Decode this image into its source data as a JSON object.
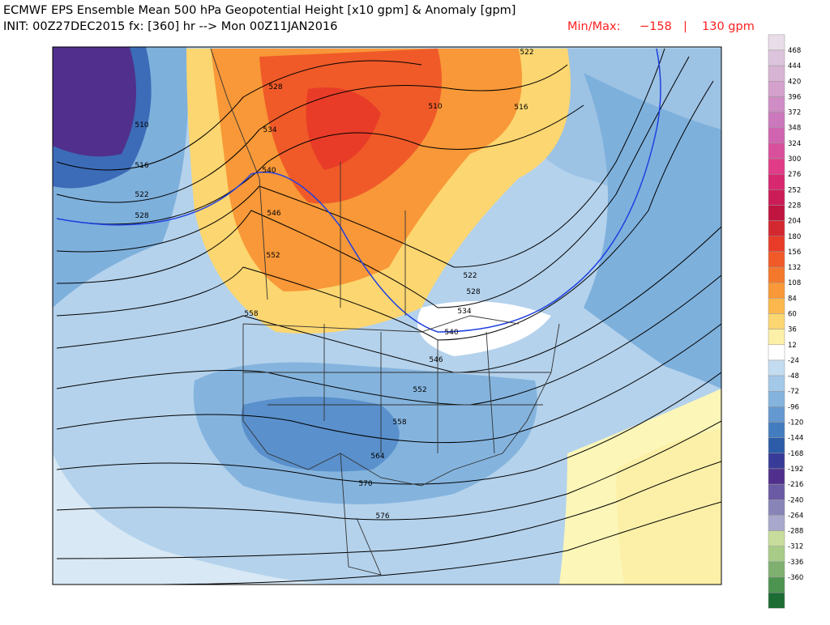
{
  "header": {
    "title": "ECMWF EPS Ensemble Mean 500 hPa Geopotential Height [x10 gpm] & Anomaly [gpm]",
    "init": "INIT: 00Z27DEC2015 fx: [360] hr --> Mon 00Z11JAN2016",
    "minmax_label": "Min/Max:",
    "min": "−158",
    "separator": "|",
    "max": "130 gpm"
  },
  "contour_labels": [
    "510",
    "516",
    "522",
    "528",
    "528",
    "534",
    "540",
    "546",
    "552",
    "558",
    "546",
    "552",
    "558",
    "564",
    "570",
    "576",
    "522",
    "528",
    "534",
    "540",
    "510",
    "516",
    "522"
  ],
  "colorbar": {
    "labels": [
      468,
      444,
      420,
      396,
      372,
      348,
      324,
      300,
      276,
      252,
      228,
      204,
      180,
      156,
      132,
      108,
      84,
      60,
      36,
      12,
      -24,
      -48,
      -72,
      -96,
      -120,
      -144,
      -168,
      -192,
      -216,
      -240,
      -264,
      -288,
      -312,
      -336,
      -360
    ],
    "colors": [
      "#e8dde8",
      "#dcc4dc",
      "#d8b4d4",
      "#d4a0cc",
      "#d08cc4",
      "#cc78bc",
      "#d064b0",
      "#d8509c",
      "#e03c88",
      "#d82870",
      "#cc1c58",
      "#c01440",
      "#d42830",
      "#e83c28",
      "#f05a28",
      "#f4782c",
      "#f89838",
      "#fcb84c",
      "#fcd670",
      "#fcf0a8",
      "#ffffff",
      "#c4dcf0",
      "#a4c8e8",
      "#84b4de",
      "#6498d0",
      "#447cc0",
      "#2c5ca8",
      "#383c98",
      "#50308c",
      "#6a5aa4",
      "#8884b8",
      "#a8a8cc",
      "#c8dc9c",
      "#a8cc88",
      "#80b070",
      "#4c9450",
      "#1c6c34"
    ]
  }
}
